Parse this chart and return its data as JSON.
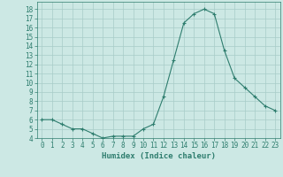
{
  "x": [
    0,
    1,
    2,
    3,
    4,
    5,
    6,
    7,
    8,
    9,
    10,
    11,
    12,
    13,
    14,
    15,
    16,
    17,
    18,
    19,
    20,
    21,
    22,
    23
  ],
  "y": [
    6.0,
    6.0,
    5.5,
    5.0,
    5.0,
    4.5,
    4.0,
    4.2,
    4.2,
    4.2,
    5.0,
    5.5,
    8.5,
    12.5,
    16.5,
    17.5,
    18.0,
    17.5,
    13.5,
    10.5,
    9.5,
    8.5,
    7.5,
    7.0
  ],
  "xlabel": "Humidex (Indice chaleur)",
  "xlim": [
    -0.5,
    23.5
  ],
  "ylim": [
    4,
    18.8
  ],
  "yticks": [
    4,
    5,
    6,
    7,
    8,
    9,
    10,
    11,
    12,
    13,
    14,
    15,
    16,
    17,
    18
  ],
  "xticks": [
    0,
    1,
    2,
    3,
    4,
    5,
    6,
    7,
    8,
    9,
    10,
    11,
    12,
    13,
    14,
    15,
    16,
    17,
    18,
    19,
    20,
    21,
    22,
    23
  ],
  "line_color": "#2e7d6e",
  "bg_color": "#cce8e4",
  "grid_color": "#a8ccc8",
  "xlabel_fontsize": 6.5,
  "tick_fontsize": 5.5
}
